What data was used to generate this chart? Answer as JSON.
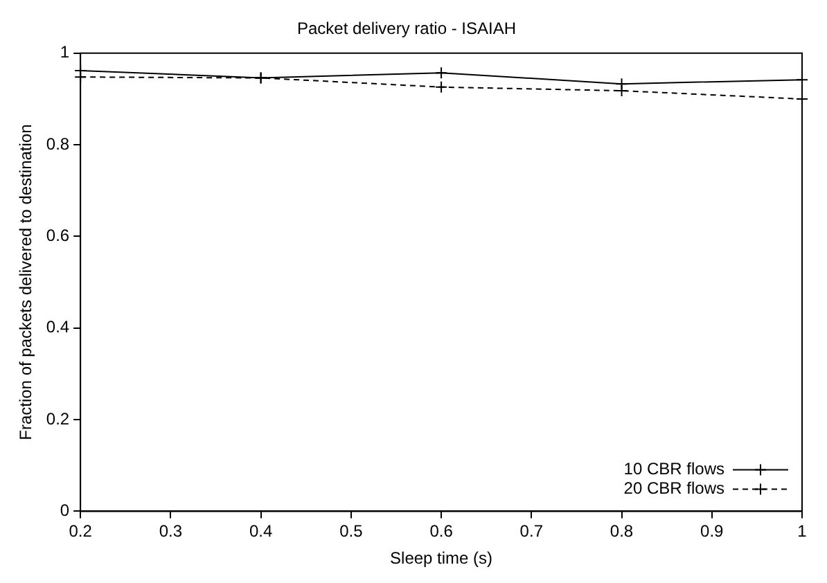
{
  "chart_data": {
    "type": "line",
    "title": "Packet delivery ratio - ISAIAH",
    "xlabel": "Sleep time (s)",
    "ylabel": "Fraction of packets delivered to destination",
    "x": [
      0.2,
      0.4,
      0.6,
      0.8,
      1
    ],
    "series": [
      {
        "name": "10 CBR flows",
        "color": "#000000",
        "values": [
          0.962,
          0.946,
          0.957,
          0.933,
          0.942
        ],
        "marker": "cross",
        "line_style": "solid"
      },
      {
        "name": "20 CBR flows",
        "color": "#000000",
        "values": [
          0.948,
          0.946,
          0.926,
          0.918,
          0.9
        ],
        "marker": "cross",
        "line_style": "dashed"
      }
    ],
    "xlim": [
      0.2,
      1
    ],
    "xticks": [
      0.2,
      0.3,
      0.4,
      0.5,
      0.6,
      0.7,
      0.8,
      0.9,
      1
    ],
    "ylim": [
      0,
      1
    ],
    "yticks": [
      0,
      0.2,
      0.4,
      0.6,
      0.8,
      1
    ],
    "grid": false,
    "legend": "bottom right"
  }
}
